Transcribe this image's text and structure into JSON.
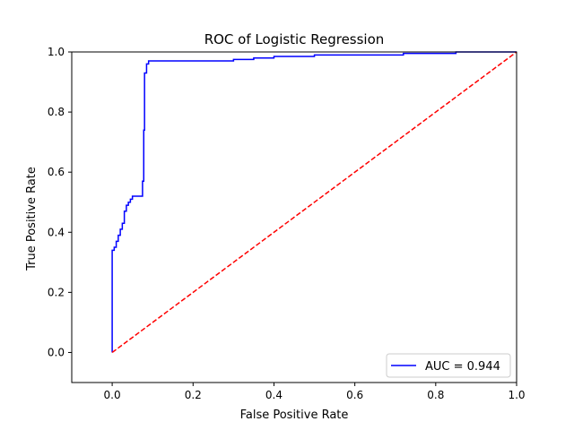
{
  "chart_data": {
    "type": "line",
    "title": "ROC of Logistic Regression",
    "xlabel": "False Positive Rate",
    "ylabel": "True Positive Rate",
    "xlim": [
      -0.1,
      1.0
    ],
    "ylim": [
      -0.1,
      1.0
    ],
    "x_ticks": [
      "0.0",
      "0.2",
      "0.4",
      "0.6",
      "0.8",
      "1.0"
    ],
    "y_ticks": [
      "0.0",
      "0.2",
      "0.4",
      "0.6",
      "0.8",
      "1.0"
    ],
    "grid": false,
    "legend_position": "lower right",
    "series": [
      {
        "name": "AUC = 0.944",
        "color": "#0000ff",
        "style": "solid",
        "x": [
          0.0,
          0.0,
          0.005,
          0.005,
          0.01,
          0.01,
          0.015,
          0.015,
          0.02,
          0.02,
          0.025,
          0.025,
          0.03,
          0.03,
          0.035,
          0.035,
          0.04,
          0.04,
          0.045,
          0.045,
          0.05,
          0.05,
          0.06,
          0.06,
          0.075,
          0.075,
          0.078,
          0.078,
          0.08,
          0.08,
          0.085,
          0.085,
          0.09,
          0.09,
          0.1,
          0.3,
          0.3,
          0.35,
          0.35,
          0.4,
          0.4,
          0.5,
          0.5,
          0.72,
          0.72,
          0.85,
          0.85,
          1.0
        ],
        "y": [
          0.0,
          0.34,
          0.34,
          0.35,
          0.35,
          0.37,
          0.37,
          0.39,
          0.39,
          0.41,
          0.41,
          0.43,
          0.43,
          0.47,
          0.47,
          0.49,
          0.49,
          0.5,
          0.5,
          0.51,
          0.51,
          0.52,
          0.52,
          0.52,
          0.52,
          0.57,
          0.57,
          0.74,
          0.74,
          0.93,
          0.93,
          0.96,
          0.96,
          0.97,
          0.97,
          0.97,
          0.975,
          0.975,
          0.98,
          0.98,
          0.985,
          0.985,
          0.99,
          0.99,
          0.995,
          0.995,
          1.0,
          1.0
        ]
      },
      {
        "name": "",
        "color": "#ff0000",
        "style": "dashed",
        "x": [
          0.0,
          1.0
        ],
        "y": [
          0.0,
          1.0
        ]
      }
    ],
    "legend": [
      {
        "label": "AUC = 0.944",
        "color": "#0000ff"
      }
    ]
  }
}
